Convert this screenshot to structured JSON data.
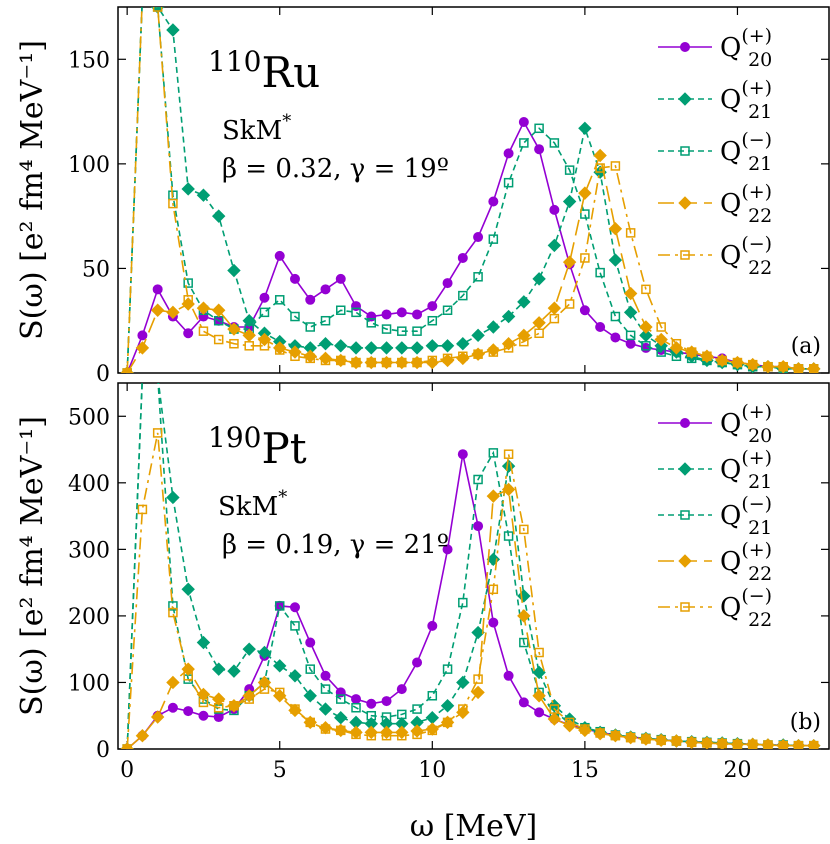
{
  "chart_data": [
    {
      "type": "line",
      "nucleus": {
        "mass": "110",
        "symbol": "Ru"
      },
      "interaction": {
        "name": "SkM",
        "sup": "*"
      },
      "deformation": "β = 0.32, γ = 19º",
      "panel_label": "(a)",
      "ylabel": "S(ω) [e² fm⁴ MeV⁻¹]",
      "xlabel": "",
      "xlim": [
        -0.3,
        23
      ],
      "ylim": [
        0,
        175
      ],
      "xticks": [
        0,
        5,
        10,
        15,
        20
      ],
      "yticks": [
        0,
        50,
        100,
        150
      ],
      "xtick_labels_shown": false,
      "legend_position": "top-right",
      "series": [
        {
          "name": "Q20(+)",
          "color": "#9400d3",
          "marker": "filled-circle",
          "dash": "solid",
          "x": [
            0,
            0.5,
            1,
            1.5,
            2,
            2.5,
            3,
            3.5,
            4,
            4.5,
            5,
            5.5,
            6,
            6.5,
            7,
            7.5,
            8,
            8.5,
            9,
            9.5,
            10,
            10.5,
            11,
            11.5,
            12,
            12.5,
            13,
            13.5,
            14,
            14.5,
            15,
            15.5,
            16,
            16.5,
            17,
            17.5,
            18,
            18.5,
            19,
            19.5,
            20,
            20.5,
            21,
            21.5,
            22,
            22.5
          ],
          "y": [
            0,
            18,
            40,
            27,
            19,
            27,
            25,
            22,
            22,
            36,
            56,
            45,
            35,
            40,
            45,
            32,
            27,
            28,
            29,
            28,
            32,
            43,
            55,
            65,
            82,
            105,
            120,
            107,
            78,
            52,
            30,
            22,
            17,
            14,
            12,
            11,
            10,
            9,
            8,
            7,
            5,
            4,
            3,
            3,
            2,
            2
          ]
        },
        {
          "name": "Q21(+)",
          "color": "#009e73",
          "marker": "filled-diamond",
          "dash": "dashed",
          "x": [
            0,
            0.5,
            1,
            1.5,
            2,
            2.5,
            3,
            3.5,
            4,
            4.5,
            5,
            5.5,
            6,
            6.5,
            7,
            7.5,
            8,
            8.5,
            9,
            9.5,
            10,
            10.5,
            11,
            11.5,
            12,
            12.5,
            13,
            13.5,
            14,
            14.5,
            15,
            15.5,
            16,
            16.5,
            17,
            17.5,
            18,
            18.5,
            19,
            19.5,
            20,
            20.5,
            21,
            21.5,
            22,
            22.5
          ],
          "y": [
            0,
            180,
            175,
            164,
            88,
            85,
            75,
            49,
            25,
            19,
            15,
            13,
            12,
            14,
            13,
            12,
            12,
            12,
            12,
            12,
            13,
            13,
            14,
            18,
            22,
            27,
            34,
            45,
            61,
            82,
            117,
            96,
            54,
            29,
            18,
            13,
            10,
            8,
            6,
            5,
            4,
            3,
            3,
            2,
            2,
            2
          ]
        },
        {
          "name": "Q21(−)",
          "color": "#009e73",
          "marker": "open-square",
          "dash": "dashed",
          "x": [
            0,
            0.5,
            1,
            1.5,
            2,
            2.5,
            3,
            3.5,
            4,
            4.5,
            5,
            5.5,
            6,
            6.5,
            7,
            7.5,
            8,
            8.5,
            9,
            9.5,
            10,
            10.5,
            11,
            11.5,
            12,
            12.5,
            13,
            13.5,
            14,
            14.5,
            15,
            15.5,
            16,
            16.5,
            17,
            17.5,
            18,
            18.5,
            19,
            19.5,
            20,
            20.5,
            21,
            21.5,
            22,
            22.5
          ],
          "y": [
            0,
            180,
            175,
            85,
            43,
            30,
            25,
            21,
            21,
            29,
            35,
            27,
            22,
            25,
            30,
            29,
            24,
            21,
            20,
            20,
            25,
            30,
            37,
            46,
            64,
            91,
            110,
            117,
            110,
            97,
            76,
            48,
            27,
            18,
            13,
            10,
            8,
            7,
            6,
            5,
            4,
            3,
            3,
            2,
            2,
            2
          ]
        },
        {
          "name": "Q22(+)",
          "color": "#e69f00",
          "marker": "filled-diamond",
          "dash": "long-dash",
          "x": [
            0,
            0.5,
            1,
            1.5,
            2,
            2.5,
            3,
            3.5,
            4,
            4.5,
            5,
            5.5,
            6,
            6.5,
            7,
            7.5,
            8,
            8.5,
            9,
            9.5,
            10,
            10.5,
            11,
            11.5,
            12,
            12.5,
            13,
            13.5,
            14,
            14.5,
            15,
            15.5,
            16,
            16.5,
            17,
            17.5,
            18,
            18.5,
            19,
            19.5,
            20,
            20.5,
            21,
            21.5,
            22,
            22.5
          ],
          "y": [
            0,
            12,
            30,
            29,
            33,
            31,
            30,
            21,
            18,
            16,
            12,
            10,
            8,
            7,
            6,
            5,
            5,
            5,
            5,
            5,
            5,
            6,
            7,
            9,
            11,
            14,
            18,
            24,
            31,
            53,
            86,
            104,
            69,
            38,
            22,
            16,
            12,
            10,
            8,
            6,
            5,
            4,
            3,
            3,
            2,
            2
          ]
        },
        {
          "name": "Q22(−)",
          "color": "#e69f00",
          "marker": "open-square",
          "dash": "dash-dot",
          "x": [
            0,
            0.5,
            1,
            1.5,
            2,
            2.5,
            3,
            3.5,
            4,
            4.5,
            5,
            5.5,
            6,
            6.5,
            7,
            7.5,
            8,
            8.5,
            9,
            9.5,
            10,
            10.5,
            11,
            11.5,
            12,
            12.5,
            13,
            13.5,
            14,
            14.5,
            15,
            15.5,
            16,
            16.5,
            17,
            17.5,
            18,
            18.5,
            19,
            19.5,
            20,
            20.5,
            21,
            21.5,
            22,
            22.5
          ],
          "y": [
            0,
            180,
            175,
            81,
            35,
            20,
            16,
            14,
            13,
            13,
            11,
            8,
            7,
            6,
            6,
            5,
            5,
            5,
            5,
            5,
            6,
            7,
            8,
            9,
            10,
            12,
            15,
            19,
            26,
            33,
            55,
            98,
            99,
            67,
            40,
            22,
            14,
            10,
            8,
            6,
            5,
            4,
            3,
            3,
            2,
            2
          ]
        }
      ]
    },
    {
      "type": "line",
      "nucleus": {
        "mass": "190",
        "symbol": "Pt"
      },
      "interaction": {
        "name": "SkM",
        "sup": "*"
      },
      "deformation": "β = 0.19, γ = 21º",
      "panel_label": "(b)",
      "ylabel": "S(ω) [e² fm⁴ MeV⁻¹]",
      "xlabel": "ω [MeV]",
      "xlim": [
        -0.3,
        23
      ],
      "ylim": [
        0,
        550
      ],
      "xticks": [
        0,
        5,
        10,
        15,
        20
      ],
      "yticks": [
        0,
        100,
        200,
        300,
        400,
        500
      ],
      "xtick_labels_shown": true,
      "legend_position": "top-right",
      "series": [
        {
          "name": "Q20(+)",
          "color": "#9400d3",
          "marker": "filled-circle",
          "dash": "solid",
          "x": [
            0,
            0.5,
            1,
            1.5,
            2,
            2.5,
            3,
            3.5,
            4,
            4.5,
            5,
            5.5,
            6,
            6.5,
            7,
            7.5,
            8,
            8.5,
            9,
            9.5,
            10,
            10.5,
            11,
            11.5,
            12,
            12.5,
            13,
            13.5,
            14,
            14.5,
            15,
            15.5,
            16,
            16.5,
            17,
            17.5,
            18,
            18.5,
            19,
            19.5,
            20,
            20.5,
            21,
            21.5,
            22,
            22.5
          ],
          "y": [
            0,
            20,
            50,
            62,
            57,
            50,
            48,
            60,
            90,
            140,
            215,
            213,
            160,
            110,
            85,
            75,
            68,
            72,
            90,
            130,
            185,
            300,
            443,
            335,
            190,
            110,
            70,
            55,
            45,
            36,
            30,
            25,
            21,
            18,
            16,
            14,
            12,
            11,
            10,
            9,
            8,
            7,
            6,
            6,
            5,
            5
          ]
        },
        {
          "name": "Q21(+)",
          "color": "#009e73",
          "marker": "filled-diamond",
          "dash": "dashed",
          "x": [
            0,
            0.5,
            1,
            1.5,
            2,
            2.5,
            3,
            3.5,
            4,
            4.5,
            5,
            5.5,
            6,
            6.5,
            7,
            7.5,
            8,
            8.5,
            9,
            9.5,
            10,
            10.5,
            11,
            11.5,
            12,
            12.5,
            13,
            13.5,
            14,
            14.5,
            15,
            15.5,
            16,
            16.5,
            17,
            17.5,
            18,
            18.5,
            19,
            19.5,
            20,
            20.5,
            21,
            21.5,
            22,
            22.5
          ],
          "y": [
            0,
            560,
            560,
            378,
            240,
            160,
            120,
            117,
            150,
            145,
            125,
            110,
            80,
            60,
            47,
            40,
            38,
            38,
            38,
            40,
            47,
            65,
            100,
            175,
            285,
            425,
            230,
            115,
            65,
            45,
            32,
            25,
            21,
            18,
            16,
            14,
            12,
            11,
            10,
            9,
            8,
            7,
            6,
            6,
            5,
            5
          ]
        },
        {
          "name": "Q21(−)",
          "color": "#009e73",
          "marker": "open-square",
          "dash": "dashed",
          "x": [
            0,
            0.5,
            1,
            1.5,
            2,
            2.5,
            3,
            3.5,
            4,
            4.5,
            5,
            5.5,
            6,
            6.5,
            7,
            7.5,
            8,
            8.5,
            9,
            9.5,
            10,
            10.5,
            11,
            11.5,
            12,
            12.5,
            13,
            13.5,
            14,
            14.5,
            15,
            15.5,
            16,
            16.5,
            17,
            17.5,
            18,
            18.5,
            19,
            19.5,
            20,
            20.5,
            21,
            21.5,
            22,
            22.5
          ],
          "y": [
            0,
            560,
            560,
            215,
            105,
            75,
            60,
            58,
            80,
            100,
            215,
            185,
            120,
            90,
            75,
            62,
            50,
            48,
            52,
            60,
            80,
            120,
            220,
            405,
            445,
            320,
            160,
            85,
            55,
            40,
            32,
            26,
            21,
            18,
            16,
            14,
            12,
            11,
            10,
            9,
            8,
            7,
            6,
            6,
            5,
            5
          ]
        },
        {
          "name": "Q22(+)",
          "color": "#e69f00",
          "marker": "filled-diamond",
          "dash": "long-dash",
          "x": [
            0,
            0.5,
            1,
            1.5,
            2,
            2.5,
            3,
            3.5,
            4,
            4.5,
            5,
            5.5,
            6,
            6.5,
            7,
            7.5,
            8,
            8.5,
            9,
            9.5,
            10,
            10.5,
            11,
            11.5,
            12,
            12.5,
            13,
            13.5,
            14,
            14.5,
            15,
            15.5,
            16,
            16.5,
            17,
            17.5,
            18,
            18.5,
            19,
            19.5,
            20,
            20.5,
            21,
            21.5,
            22,
            22.5
          ],
          "y": [
            0,
            20,
            48,
            100,
            120,
            82,
            75,
            65,
            80,
            100,
            80,
            58,
            40,
            32,
            28,
            25,
            25,
            25,
            25,
            27,
            30,
            40,
            55,
            85,
            380,
            390,
            200,
            80,
            45,
            35,
            28,
            23,
            20,
            17,
            15,
            13,
            12,
            10,
            9,
            8,
            7,
            7,
            6,
            5,
            5,
            5
          ]
        },
        {
          "name": "Q22(−)",
          "color": "#e69f00",
          "marker": "open-square",
          "dash": "dash-dot",
          "x": [
            0,
            0.5,
            1,
            1.5,
            2,
            2.5,
            3,
            3.5,
            4,
            4.5,
            5,
            5.5,
            6,
            6.5,
            7,
            7.5,
            8,
            8.5,
            9,
            9.5,
            10,
            10.5,
            11,
            11.5,
            12,
            12.5,
            13,
            13.5,
            14,
            14.5,
            15,
            15.5,
            16,
            16.5,
            17,
            17.5,
            18,
            18.5,
            19,
            19.5,
            20,
            20.5,
            21,
            21.5,
            22,
            22.5
          ],
          "y": [
            0,
            360,
            475,
            205,
            110,
            70,
            62,
            65,
            75,
            90,
            85,
            60,
            40,
            30,
            28,
            22,
            20,
            20,
            20,
            22,
            28,
            40,
            60,
            105,
            240,
            443,
            330,
            145,
            60,
            40,
            30,
            24,
            20,
            17,
            15,
            13,
            12,
            10,
            9,
            8,
            7,
            7,
            6,
            5,
            5,
            5
          ]
        }
      ]
    }
  ]
}
